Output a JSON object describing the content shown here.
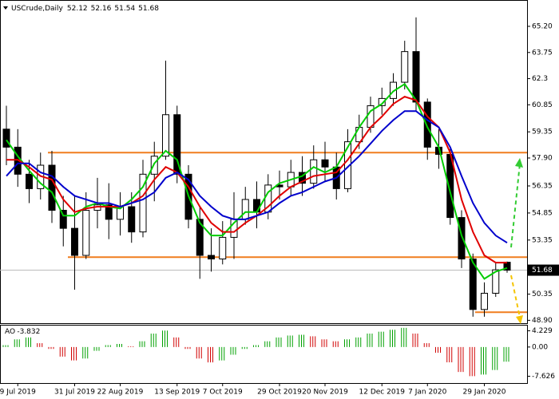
{
  "chart_data": {
    "type": "candlestick",
    "symbol": "USCrude,Daily",
    "categories": [
      null,
      "9 Jul 2019",
      null,
      null,
      null,
      null,
      "31 Jul 2019",
      null,
      null,
      null,
      "22 Aug 2019",
      null,
      null,
      null,
      null,
      "13 Sep 2019",
      null,
      null,
      null,
      "7 Oct 2019",
      null,
      null,
      null,
      null,
      "29 Oct 2019",
      null,
      null,
      null,
      "20 Nov 2019",
      null,
      null,
      null,
      null,
      "12 Dec 2019",
      null,
      null,
      null,
      "7 Jan 2020",
      null,
      null,
      null,
      null,
      "29 Jan 2020",
      null,
      null
    ],
    "candles": {
      "open": [
        59.5,
        58.5,
        57,
        56.2,
        57.5,
        55,
        54,
        52.5,
        55,
        55.3,
        54.5,
        55.2,
        53.8,
        57,
        58,
        60.3,
        57,
        54.5,
        52.5,
        52.3,
        53.5,
        54.5,
        55.6,
        54.9,
        56.4,
        56.3,
        57.1,
        56.5,
        57.8,
        57.4,
        56.2,
        58.8,
        59.6,
        60.8,
        61.2,
        62.1,
        63.8,
        61,
        58.5,
        58.1,
        54.6,
        52.3,
        49.5,
        50.4,
        52.12
      ],
      "high": [
        60.8,
        59.5,
        57.8,
        58.2,
        58.3,
        55.8,
        55.8,
        56,
        56.8,
        56.5,
        56,
        56,
        57.8,
        58.8,
        63.3,
        60.8,
        57.5,
        55.2,
        54,
        54.4,
        56,
        56.3,
        56.6,
        57,
        57.2,
        57.8,
        58,
        58.6,
        58.8,
        58.2,
        59.5,
        60.3,
        61.3,
        61.8,
        62.6,
        64.4,
        65.7,
        61.2,
        59.5,
        58.4,
        55,
        52.6,
        51,
        52.1,
        52.16
      ],
      "low": [
        57.5,
        56.3,
        55.4,
        55.6,
        54.3,
        53,
        50.6,
        52.3,
        54,
        53.4,
        53.6,
        53.2,
        53.5,
        55.5,
        57.8,
        56.5,
        54,
        51.2,
        51.6,
        52,
        52.3,
        54.2,
        54,
        54.5,
        55.6,
        55.8,
        55.8,
        56.2,
        56.6,
        55.6,
        56,
        58.4,
        59.3,
        60.3,
        60.8,
        61.7,
        60.5,
        57.8,
        57.3,
        54.2,
        51.8,
        49.1,
        49.1,
        50.2,
        51.54
      ],
      "close": [
        58.5,
        57,
        56.2,
        57.5,
        55,
        54,
        52.5,
        55,
        55.3,
        54.5,
        55.2,
        53.8,
        57,
        58,
        60.3,
        57,
        54.5,
        52.5,
        52.3,
        53.5,
        54.5,
        55.6,
        54.9,
        56.4,
        56.3,
        57.1,
        56.5,
        57.8,
        57.4,
        56.2,
        58.8,
        59.6,
        60.8,
        61.2,
        62.1,
        63.8,
        61,
        58.5,
        58.1,
        54.6,
        52.3,
        49.5,
        50.4,
        51.7,
        51.68
      ]
    },
    "series": [
      {
        "color": "#00cc00",
        "values": [
          58.9,
          58,
          57.2,
          56.5,
          56,
          54.7,
          54.7,
          55.2,
          55.4,
          55.2,
          55.1,
          55.6,
          56.3,
          57.6,
          58.3,
          57.8,
          55.8,
          54.3,
          53.6,
          53.6,
          54.3,
          54.9,
          54.9,
          56,
          56.5,
          56.7,
          56.9,
          57.4,
          57.1,
          57.4,
          58.5,
          59.6,
          60.5,
          60.9,
          61.6,
          62,
          61.1,
          59.6,
          58.5,
          56,
          53.6,
          52.1,
          51.2,
          51.6,
          51.8
        ]
      },
      {
        "color": "#e00000",
        "values": [
          57.8,
          57.8,
          57.4,
          56.9,
          56.7,
          55.6,
          54.9,
          55.1,
          55.2,
          55.2,
          55.2,
          55.4,
          55.8,
          56.7,
          57.4,
          57.1,
          56.3,
          55.2,
          54.3,
          53.8,
          53.8,
          54.3,
          54.7,
          55.2,
          55.8,
          56.3,
          56.6,
          56.9,
          57,
          57.1,
          57.8,
          58.7,
          59.6,
          60.2,
          60.9,
          61.3,
          61.1,
          60.2,
          59.6,
          58.2,
          55.6,
          53.8,
          52.5,
          52.1,
          52.1
        ]
      },
      {
        "color": "#0000cc",
        "values": [
          56.9,
          57.6,
          57.6,
          57.1,
          56.9,
          56.3,
          55.8,
          55.6,
          55.4,
          55.4,
          55.2,
          55.4,
          55.6,
          56,
          56.8,
          57.1,
          56.7,
          55.8,
          55.2,
          54.7,
          54.5,
          54.5,
          54.7,
          54.9,
          55.4,
          55.8,
          56,
          56.3,
          56.6,
          56.8,
          57.4,
          58,
          58.7,
          59.4,
          60,
          60.5,
          60.5,
          60,
          59.6,
          58.5,
          56.9,
          55.4,
          54.3,
          53.6,
          53.2
        ]
      }
    ],
    "levels": [
      58.2,
      52.4,
      49.35
    ],
    "level_color": "#f07d1e",
    "ylim": [
      48.74,
      66.66
    ],
    "yticks": [
      {
        "value": 65.2,
        "label": "65.20"
      },
      63.75,
      62.3,
      60.85,
      59.35,
      {
        "value": 57.9,
        "label": "57.90"
      },
      56.35,
      54.85,
      53.35,
      50.35,
      {
        "value": 48.9,
        "label": "48.90"
      }
    ],
    "ao": {
      "label": "AO",
      "values": [
        0.5,
        2,
        2.5,
        1,
        -0.5,
        -2.5,
        -3.5,
        -3,
        -1,
        0.5,
        0.8,
        0.2,
        1.5,
        3.5,
        4.3,
        2.5,
        -0.5,
        -3,
        -4,
        -3.5,
        -2,
        -0.5,
        0.5,
        1.5,
        2.5,
        3,
        3.2,
        2.8,
        2,
        1.5,
        2,
        2.5,
        3.5,
        4,
        4.5,
        5,
        3.5,
        1,
        -1.5,
        -4,
        -6.5,
        -7.6,
        -7.2,
        -6,
        -3.832
      ],
      "up_color": "#00a000",
      "down_color": "#d00000",
      "ylim": [
        -9.4,
        5.8
      ],
      "yticks": [
        4.229,
        {
          "value": 0,
          "label": "0.00"
        },
        -7.626
      ]
    }
  }
}
